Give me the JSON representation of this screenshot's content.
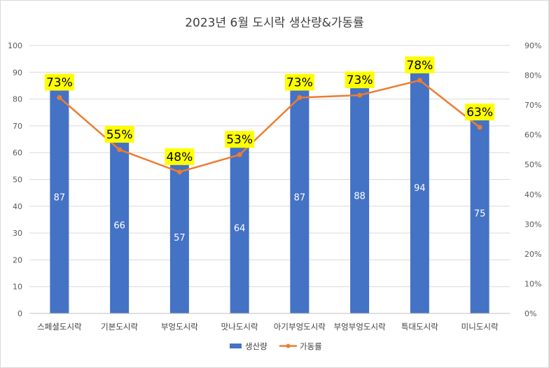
{
  "chart_data": {
    "type": "bar",
    "title": "2023년 6월 도시락 생산량&가동률",
    "categories": [
      "스페셜도시락",
      "기본도시락",
      "부엉도시락",
      "맛나도시락",
      "아기부엉도시락",
      "부엉부엉도시락",
      "특대도시락",
      "미니도시락"
    ],
    "series": [
      {
        "name": "생산량",
        "type": "bar",
        "axis": "left",
        "color": "#4472c4",
        "values": [
          87,
          66,
          57,
          64,
          87,
          88,
          94,
          75
        ],
        "data_labels": [
          "87",
          "66",
          "57",
          "64",
          "87",
          "88",
          "94",
          "75"
        ]
      },
      {
        "name": "가동률",
        "type": "line",
        "axis": "right",
        "color": "#ed7d31",
        "values": [
          0.73,
          0.55,
          0.48,
          0.53,
          0.73,
          0.73,
          0.78,
          0.63
        ],
        "plotted_values": [
          0.725,
          0.55,
          0.475,
          0.533,
          0.725,
          0.733,
          0.783,
          0.625
        ],
        "data_labels": [
          "73%",
          "55%",
          "48%",
          "53%",
          "73%",
          "73%",
          "78%",
          "63%"
        ],
        "label_background": "#ffff00"
      }
    ],
    "ylim": [
      0,
      100
    ],
    "yticks": [
      "0",
      "10",
      "20",
      "30",
      "40",
      "50",
      "60",
      "70",
      "80",
      "90",
      "100"
    ],
    "y2lim": [
      0,
      0.9
    ],
    "y2ticks": [
      "0%",
      "10%",
      "20%",
      "30%",
      "40%",
      "50%",
      "60%",
      "70%",
      "80%",
      "90%"
    ],
    "grid": true,
    "legend": "bottom"
  }
}
